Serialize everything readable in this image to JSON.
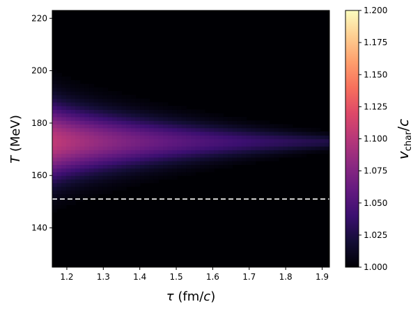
{
  "chart_data": {
    "type": "heatmap",
    "xlabel_parts": {
      "symbol": "τ",
      "pre_unit": " (fm/",
      "unit_var": "c",
      "post_unit": ")"
    },
    "ylabel_parts": {
      "symbol": "T",
      "unit": " (MeV)"
    },
    "colorbar_label_parts": {
      "main": "v",
      "sub": "char",
      "sep": "/",
      "var": "c"
    },
    "xlim": [
      1.16,
      1.92
    ],
    "ylim": [
      125,
      223
    ],
    "x_ticks": [
      1.2,
      1.3,
      1.4,
      1.5,
      1.6,
      1.7,
      1.8,
      1.9
    ],
    "x_tick_labels": [
      "1.2",
      "1.3",
      "1.4",
      "1.5",
      "1.6",
      "1.7",
      "1.8",
      "1.9"
    ],
    "y_ticks": [
      140,
      160,
      180,
      200,
      220
    ],
    "y_tick_labels": [
      "140",
      "160",
      "180",
      "200",
      "220"
    ],
    "colormap": "magma",
    "colorbar_range": [
      1.0,
      1.2
    ],
    "colorbar_ticks": [
      1.0,
      1.025,
      1.05,
      1.075,
      1.1,
      1.125,
      1.15,
      1.175,
      1.2
    ],
    "colorbar_tick_labels": [
      "1.000",
      "1.025",
      "1.050",
      "1.075",
      "1.100",
      "1.125",
      "1.150",
      "1.175",
      "1.200"
    ],
    "field": {
      "peak_T": 173,
      "peak_value": 1.105,
      "width_T_at_min_tau": 14,
      "width_T_at_max_tau": 2.5,
      "decay_tau": 0.55
    },
    "reference_line": {
      "T": 151,
      "style": "dashed",
      "color": "#ffffff"
    }
  }
}
